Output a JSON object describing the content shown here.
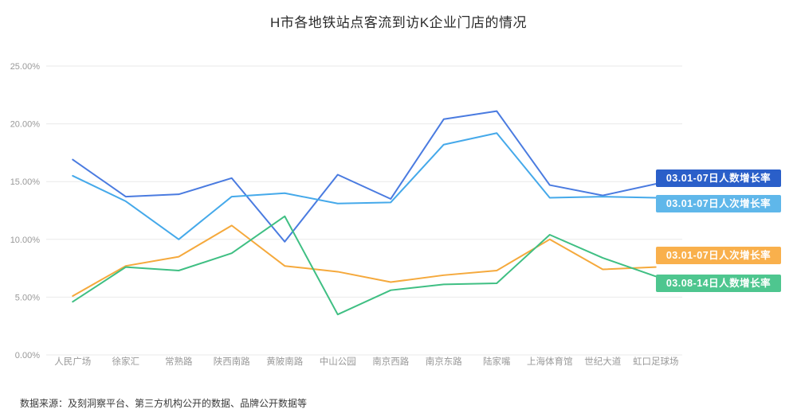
{
  "title": "H市各地铁站点客流到访K企业门店的情况",
  "source_note": "数据来源：及刻洞察平台、第三方机构公开的数据、品牌公开数据等",
  "chart_data": {
    "type": "line",
    "title": "H市各地铁站点客流到访K企业门店的情况",
    "xlabel": "",
    "ylabel": "",
    "ylim": [
      0,
      25
    ],
    "grid": true,
    "legend_position": "right-end-labels",
    "y_ticks": [
      "25.00%",
      "20.00%",
      "15.00%",
      "10.00%",
      "5.00%",
      "0.00%"
    ],
    "categories": [
      "人民广场",
      "徐家汇",
      "常熟路",
      "陕西南路",
      "黄陂南路",
      "中山公园",
      "南京西路",
      "南京东路",
      "陆家嘴",
      "上海体育馆",
      "世纪大道",
      "虹口足球场"
    ],
    "series": [
      {
        "name": "03.01-07日人数增长率",
        "color": "#4a7be0",
        "badge_color": "#2a5fc9",
        "values": [
          16.9,
          13.7,
          13.9,
          15.3,
          9.8,
          15.6,
          13.5,
          20.4,
          21.1,
          14.7,
          13.8,
          14.8
        ]
      },
      {
        "name": "03.01-07日人次增长率",
        "color": "#45a9ea",
        "badge_color": "#5fb7ea",
        "values": [
          15.5,
          13.3,
          10.0,
          13.7,
          14.0,
          13.1,
          13.2,
          18.2,
          19.2,
          13.6,
          13.7,
          13.6
        ]
      },
      {
        "name": "03.01-07日人次增长率",
        "color": "#f5a93c",
        "badge_color": "#f9b04c",
        "values": [
          5.1,
          7.7,
          8.5,
          11.2,
          7.7,
          7.2,
          6.3,
          6.9,
          7.3,
          10.0,
          7.4,
          7.6
        ]
      },
      {
        "name": "03.08-14日人数增长率",
        "color": "#3fbf83",
        "badge_color": "#4ec68f",
        "values": [
          4.6,
          7.6,
          7.3,
          8.8,
          12.0,
          3.5,
          5.6,
          6.1,
          6.2,
          10.4,
          8.4,
          6.8
        ]
      }
    ]
  }
}
